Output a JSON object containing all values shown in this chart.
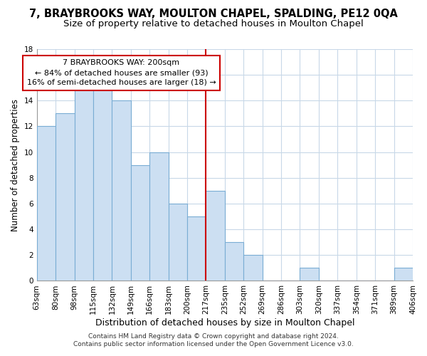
{
  "title": "7, BRAYBROOKS WAY, MOULTON CHAPEL, SPALDING, PE12 0QA",
  "subtitle": "Size of property relative to detached houses in Moulton Chapel",
  "xlabel": "Distribution of detached houses by size in Moulton Chapel",
  "ylabel": "Number of detached properties",
  "footer_line1": "Contains HM Land Registry data © Crown copyright and database right 2024.",
  "footer_line2": "Contains public sector information licensed under the Open Government Licence v3.0.",
  "bin_labels": [
    "63sqm",
    "80sqm",
    "98sqm",
    "115sqm",
    "132sqm",
    "149sqm",
    "166sqm",
    "183sqm",
    "200sqm",
    "217sqm",
    "235sqm",
    "252sqm",
    "269sqm",
    "286sqm",
    "303sqm",
    "320sqm",
    "337sqm",
    "354sqm",
    "371sqm",
    "389sqm",
    "406sqm"
  ],
  "bar_heights": [
    12,
    13,
    15,
    15,
    14,
    9,
    10,
    6,
    5,
    7,
    3,
    2,
    0,
    0,
    1,
    0,
    0,
    0,
    0,
    1
  ],
  "bar_color": "#ccdff2",
  "bar_edge_color": "#7aadd4",
  "reference_line_color": "#cc0000",
  "annotation_line1": "7 BRAYBROOKS WAY: 200sqm",
  "annotation_line2": "← 84% of detached houses are smaller (93)",
  "annotation_line3": "16% of semi-detached houses are larger (18) →",
  "ylim": [
    0,
    18
  ],
  "yticks": [
    0,
    2,
    4,
    6,
    8,
    10,
    12,
    14,
    16,
    18
  ],
  "background_color": "#ffffff",
  "grid_color": "#c8d8e8",
  "title_fontsize": 10.5,
  "subtitle_fontsize": 9.5,
  "xlabel_fontsize": 9,
  "ylabel_fontsize": 8.5,
  "tick_fontsize": 7.5,
  "annotation_fontsize": 8,
  "footer_fontsize": 6.5
}
